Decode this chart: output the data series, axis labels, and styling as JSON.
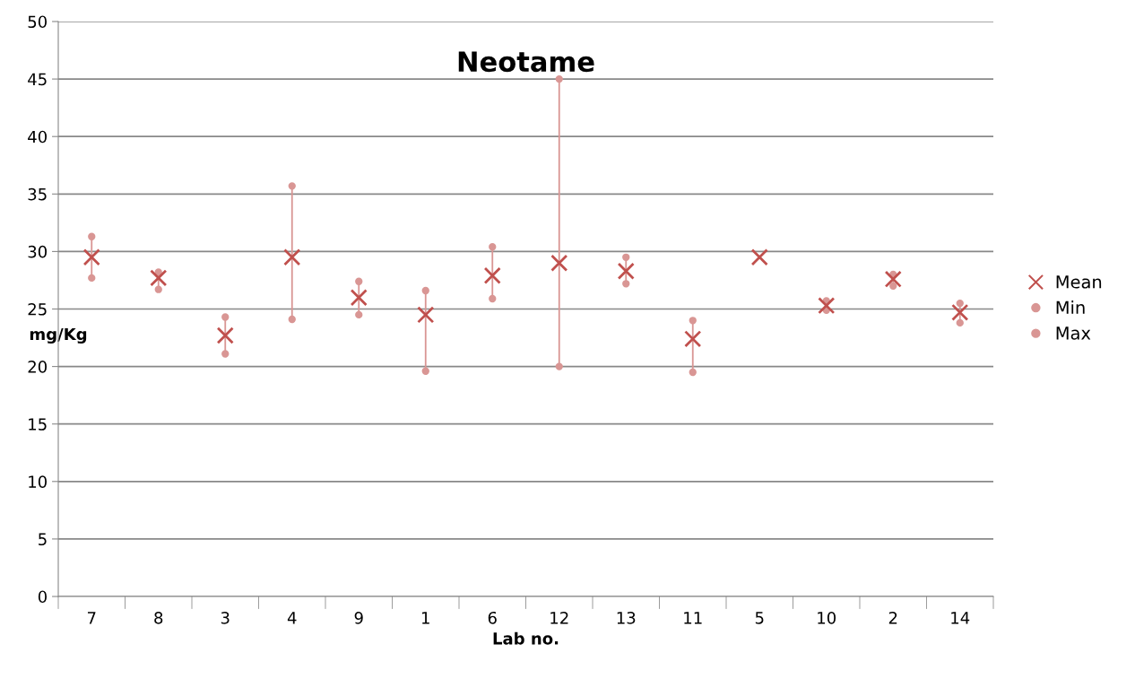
{
  "chart_data": {
    "type": "scatter",
    "title": "Neotame",
    "xlabel": "Lab no.",
    "ylabel": "mg/Kg",
    "categories": [
      "7",
      "8",
      "3",
      "4",
      "9",
      "1",
      "6",
      "12",
      "13",
      "11",
      "5",
      "10",
      "2",
      "14"
    ],
    "series": [
      {
        "name": "Mean",
        "color": "#c0504d",
        "marker": "cross",
        "values": [
          29.5,
          27.7,
          22.7,
          29.5,
          26.0,
          24.5,
          27.9,
          29.0,
          28.3,
          22.4,
          29.5,
          25.3,
          27.6,
          24.7
        ]
      },
      {
        "name": "Min",
        "color": "#d99694",
        "marker": "circle",
        "values": [
          27.7,
          26.7,
          21.1,
          24.1,
          24.5,
          19.6,
          25.9,
          20.0,
          27.2,
          19.5,
          null,
          24.9,
          27.0,
          23.8
        ]
      },
      {
        "name": "Max",
        "color": "#d99694",
        "marker": "circle",
        "values": [
          31.3,
          28.2,
          24.3,
          35.7,
          27.4,
          26.6,
          30.4,
          45.0,
          29.5,
          24.0,
          null,
          25.7,
          28.0,
          25.5
        ]
      }
    ],
    "ylim": [
      0,
      50
    ],
    "yticks": [
      0,
      5,
      10,
      15,
      20,
      25,
      30,
      35,
      40,
      45,
      50
    ],
    "grid": "y",
    "legend": "right"
  }
}
